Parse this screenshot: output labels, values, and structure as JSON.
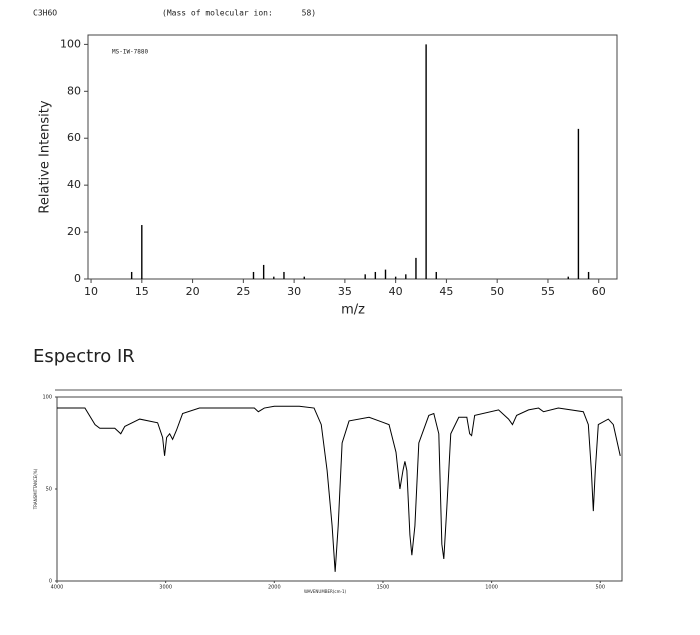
{
  "chart_data": [
    {
      "type": "bar",
      "title": "C3H6O",
      "subtitle": "(Mass of molecular ion:      58)",
      "annotation": "MS-IW-7880",
      "xlabel": "m/z",
      "ylabel": "Relative Intensity",
      "x": [
        14,
        15,
        26,
        27,
        28,
        29,
        31,
        37,
        38,
        39,
        40,
        41,
        42,
        43,
        44,
        57,
        58,
        59
      ],
      "values": [
        3,
        23,
        3,
        6,
        1,
        3,
        1,
        2,
        3,
        4,
        1,
        2,
        9,
        100,
        3,
        1,
        64,
        3
      ],
      "color": "#000000",
      "xlim": [
        9.7,
        61.8
      ],
      "xticks": [
        10,
        15,
        20,
        25,
        30,
        35,
        40,
        45,
        50,
        55,
        60
      ],
      "ylim": [
        0,
        104
      ],
      "yticks": [
        0,
        20,
        40,
        60,
        80,
        100
      ]
    },
    {
      "type": "line",
      "title": "Espectro IR",
      "xlabel": "WAVENUMBER(cm-1)",
      "ylabel": "TRANSMITTANCE(%)",
      "x": [
        4000,
        3743,
        3650,
        3606,
        3468,
        3413,
        3376,
        3239,
        3074,
        3028,
        3010,
        2991,
        2963,
        2936,
        2900,
        2844,
        2689,
        2184,
        2147,
        2092,
        2000,
        1885,
        1817,
        1784,
        1757,
        1734,
        1720,
        1706,
        1688,
        1656,
        1564,
        1472,
        1440,
        1422,
        1408,
        1399,
        1390,
        1376,
        1367,
        1353,
        1335,
        1289,
        1266,
        1243,
        1229,
        1220,
        1206,
        1188,
        1151,
        1114,
        1101,
        1092,
        1078,
        968,
        922,
        904,
        885,
        830,
        784,
        761,
        693,
        578,
        555,
        541,
        532,
        523,
        509,
        463,
        440,
        408
      ],
      "values": [
        94,
        94,
        85,
        83,
        83,
        80,
        84,
        88,
        86,
        78,
        68,
        78,
        80,
        77,
        82,
        91,
        94,
        94,
        92,
        94,
        95,
        95,
        94,
        85,
        60,
        30,
        5,
        30,
        75,
        87,
        89,
        85,
        70,
        50,
        60,
        65,
        60,
        25,
        14,
        30,
        75,
        90,
        91,
        80,
        20,
        12,
        40,
        80,
        89,
        89,
        80,
        79,
        90,
        93,
        88,
        85,
        90,
        93,
        94,
        92,
        94,
        92,
        85,
        60,
        38,
        60,
        85,
        88,
        85,
        68
      ],
      "color": "#000000",
      "xlim": [
        4000,
        400
      ],
      "xticks": [
        4000,
        3000,
        2000,
        1500,
        1000,
        500
      ],
      "ylim": [
        0,
        100
      ],
      "yticks": [
        0,
        50,
        100
      ]
    }
  ]
}
